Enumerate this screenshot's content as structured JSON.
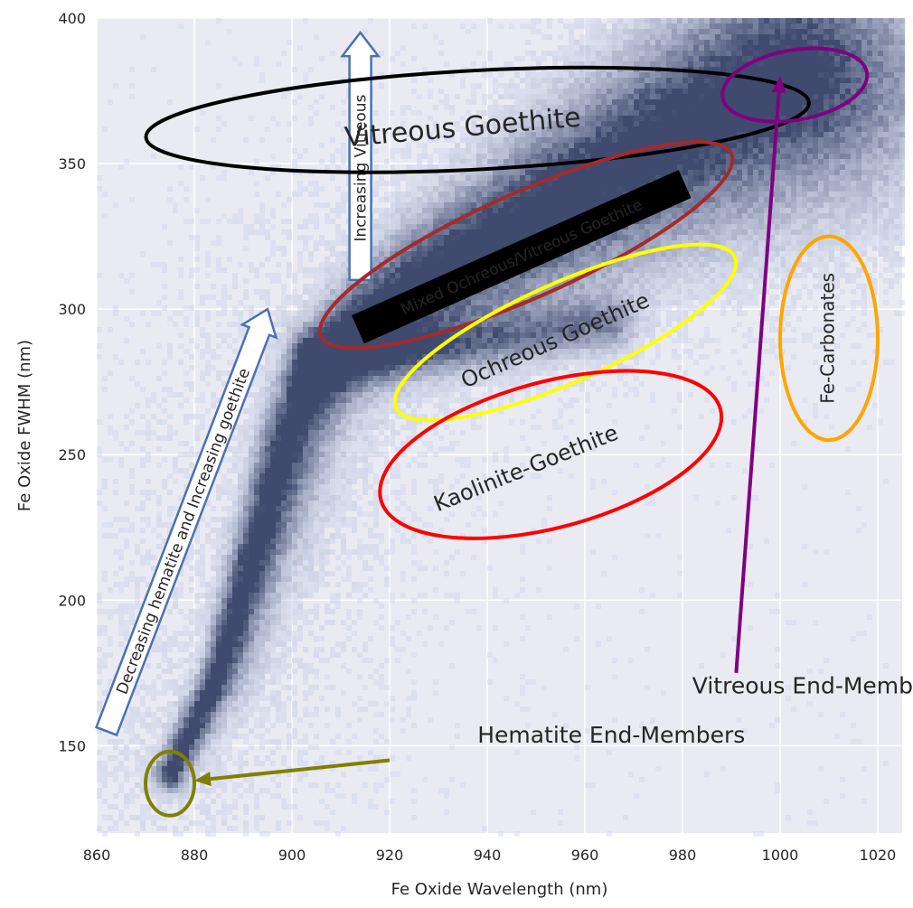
{
  "chart_data": {
    "type": "heatmap",
    "title": "",
    "xlabel": "Fe Oxide Wavelength (nm)",
    "ylabel": "Fe Oxide FWHM (nm)",
    "xlim": [
      860,
      1025
    ],
    "ylim": [
      120,
      400
    ],
    "x_ticks": [
      860,
      880,
      900,
      920,
      940,
      960,
      980,
      1000,
      1020
    ],
    "y_ticks": [
      150,
      200,
      250,
      300,
      350,
      400
    ],
    "grid": true,
    "background_color": "#eaeaf2",
    "grid_color": "#ffffff",
    "colormap": [
      "#c9d3ee",
      "#3f4a6e"
    ],
    "density_ridges": [
      {
        "name": "main-trend",
        "points": [
          [
            875,
            140
          ],
          [
            885,
            175
          ],
          [
            893,
            220
          ],
          [
            900,
            260
          ],
          [
            908,
            285
          ],
          [
            918,
            300
          ],
          [
            932,
            315
          ],
          [
            950,
            332
          ],
          [
            970,
            352
          ],
          [
            990,
            370
          ],
          [
            1002,
            380
          ]
        ]
      },
      {
        "name": "ochreous-branch",
        "points": [
          [
            905,
            282
          ],
          [
            925,
            285
          ],
          [
            945,
            290
          ],
          [
            965,
            295
          ]
        ]
      }
    ],
    "annotations": [
      {
        "id": "vitreous-goethite",
        "text": "Vitreous Goethite",
        "color": "#000000",
        "ellipse": {
          "cx": 938,
          "cy": 365,
          "rx": 68,
          "ry": 17,
          "rotation_deg": -3
        },
        "label_pos": [
          935,
          362
        ],
        "label_rotation": -5
      },
      {
        "id": "mixed",
        "text": "Mixed Ochreous/Vitreous Goethite",
        "color": "#a52a2a",
        "ellipse": {
          "cx": 948,
          "cy": 322,
          "rx": 46,
          "ry": 18,
          "rotation_deg": -24
        },
        "label_pos": [
          947,
          318
        ],
        "label_rotation": -24
      },
      {
        "id": "ochreous",
        "text": "Ochreous Goethite",
        "color": "#ffff00",
        "ellipse": {
          "cx": 956,
          "cy": 292,
          "rx": 38,
          "ry": 17,
          "rotation_deg": -24
        },
        "label_pos": [
          954,
          289
        ],
        "label_rotation": -24
      },
      {
        "id": "kaolinite",
        "text": "Kaolinite-Goethite",
        "color": "#ff0000",
        "ellipse": {
          "cx": 953,
          "cy": 250,
          "rx": 36,
          "ry": 25,
          "rotation_deg": -15
        },
        "label_pos": [
          948,
          245
        ],
        "label_rotation": -22
      },
      {
        "id": "fe-carbonates",
        "text": "Fe-Carbonates",
        "color": "#ffa500",
        "ellipse": {
          "cx": 1010,
          "cy": 290,
          "rx": 10,
          "ry": 35,
          "rotation_deg": 0
        },
        "label_pos": [
          1010,
          290
        ],
        "label_rotation": -90
      },
      {
        "id": "vitreous-end-members-ring",
        "text": "",
        "color": "#800080",
        "ellipse": {
          "cx": 1003,
          "cy": 377,
          "rx": 15,
          "ry": 12,
          "rotation_deg": -10
        }
      },
      {
        "id": "hematite-end-members-ring",
        "text": "",
        "color": "#808000",
        "ellipse": {
          "cx": 875,
          "cy": 137,
          "rx": 5,
          "ry": 11,
          "rotation_deg": 0
        }
      }
    ],
    "arrows": [
      {
        "id": "vitreous-end-members",
        "text": "Vitreous End-Members",
        "color": "#800080",
        "from": [
          991,
          175
        ],
        "to": [
          1000,
          380
        ],
        "label_pos": [
          982,
          168
        ]
      },
      {
        "id": "hematite-end-members",
        "text": "Hematite End-Members",
        "color": "#808000",
        "from": [
          920,
          145
        ],
        "to": [
          880,
          138
        ],
        "label_pos": [
          938,
          151
        ]
      }
    ],
    "block_arrows": [
      {
        "id": "increasing-vitreous",
        "text": "Increasing Vitreous",
        "from": [
          914,
          310
        ],
        "to": [
          914,
          395
        ]
      },
      {
        "id": "decreasing-hematite",
        "text": "Decreasing hematite and Increasing goethite",
        "from": [
          862,
          155
        ],
        "to": [
          895,
          300
        ]
      }
    ]
  }
}
